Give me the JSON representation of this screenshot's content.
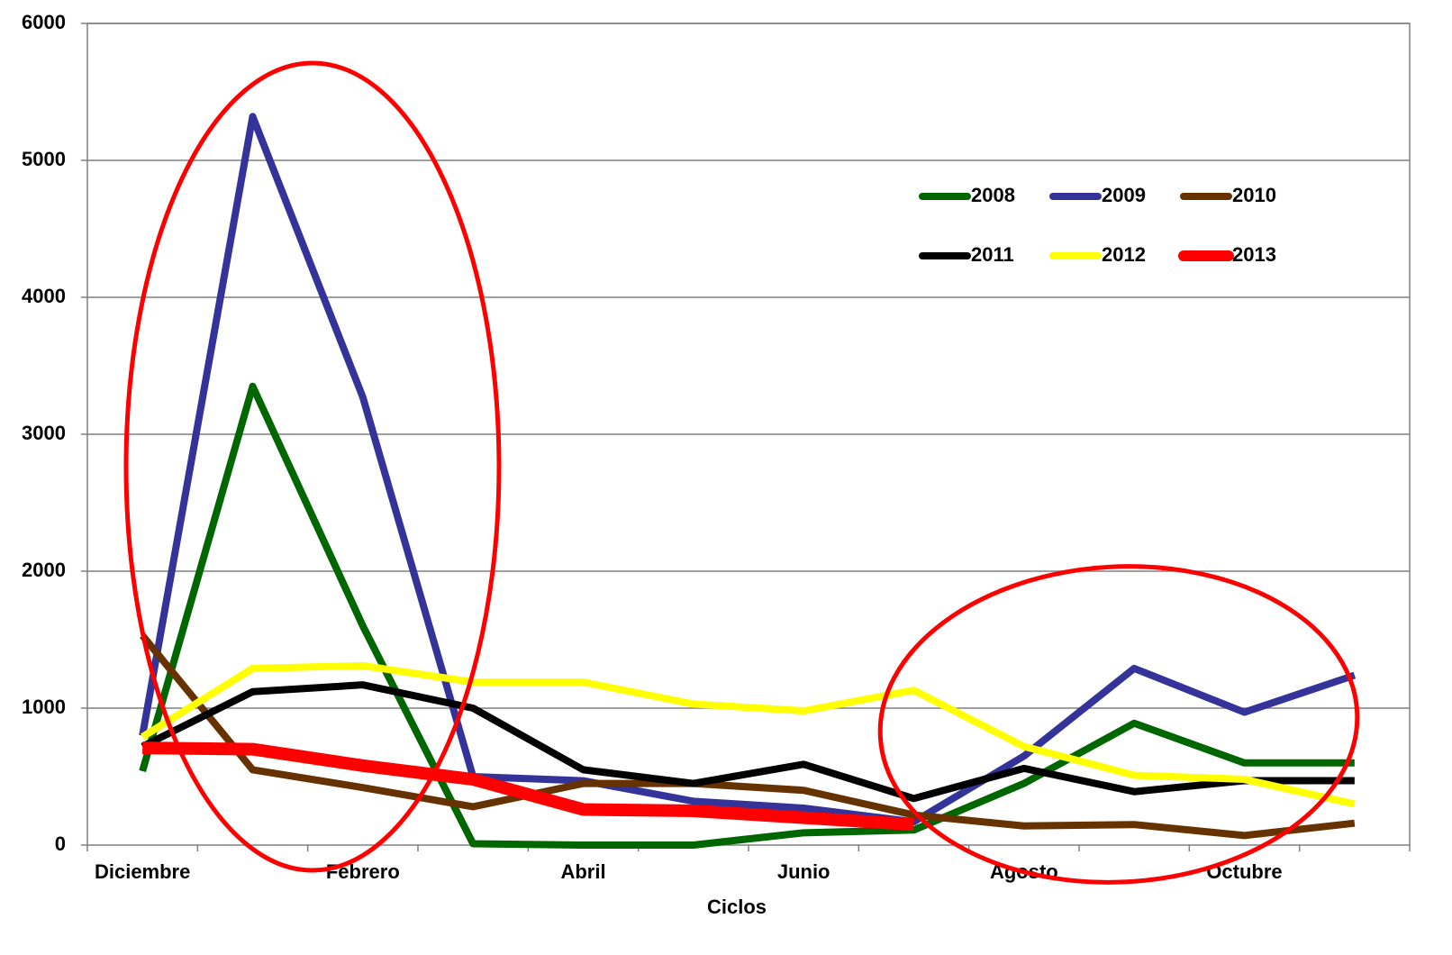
{
  "chart_data": {
    "type": "line",
    "x_label": "Ciclos",
    "categories": [
      "Diciembre",
      null,
      "Febrero",
      null,
      "Abril",
      null,
      "Junio",
      null,
      "Agosto",
      null,
      "Octubre",
      null
    ],
    "series": [
      {
        "name": "2008",
        "color": "#006600",
        "values": [
          540,
          3350,
          1600,
          10,
          0,
          0,
          90,
          110,
          450,
          890,
          600,
          600
        ]
      },
      {
        "name": "2009",
        "color": "#333399",
        "values": [
          800,
          5320,
          3270,
          500,
          470,
          320,
          270,
          170,
          650,
          1290,
          970,
          1240
        ]
      },
      {
        "name": "2010",
        "color": "#663300",
        "values": [
          1530,
          550,
          420,
          280,
          450,
          450,
          400,
          220,
          140,
          150,
          70,
          160
        ]
      },
      {
        "name": "2011",
        "color": "#000000",
        "values": [
          720,
          1120,
          1170,
          1000,
          550,
          450,
          590,
          340,
          560,
          390,
          470,
          470
        ]
      },
      {
        "name": "2012",
        "color": "#ffff00",
        "values": [
          790,
          1290,
          1310,
          1190,
          1190,
          1030,
          980,
          1130,
          720,
          510,
          480,
          300
        ]
      },
      {
        "name": "2013",
        "color": "#ff0000",
        "values": [
          710,
          700,
          580,
          480,
          260,
          250,
          200,
          150,
          null,
          null,
          null,
          null
        ]
      }
    ],
    "ylim": [
      0,
      6000
    ],
    "yticks": [
      0,
      1000,
      2000,
      3000,
      4000,
      5000,
      6000
    ],
    "grid": true
  }
}
